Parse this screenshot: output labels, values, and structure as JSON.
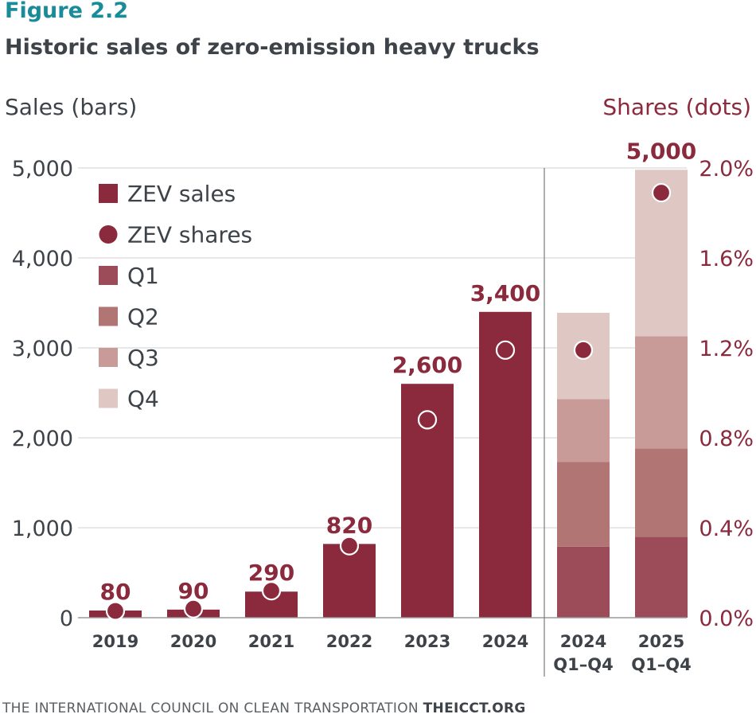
{
  "figure_label": "Figure 2.2",
  "title": "Historic sales of zero-emission heavy trucks",
  "footer_org": "THE INTERNATIONAL COUNCIL ON CLEAN TRANSPORTATION",
  "footer_site": "THEICCT.ORG",
  "colors": {
    "zev": "#8b2a3d",
    "q1": "#9c4b58",
    "q2": "#b17574",
    "q3": "#c99b98",
    "q4": "#dfc7c4",
    "grid": "#d0d0d0",
    "axis_text": "#3d4348",
    "share_text": "#8b2a3d"
  },
  "chart_data": {
    "type": "bar",
    "left_axis_title": "Sales (bars)",
    "right_axis_title": "Shares (dots)",
    "ylim": [
      0,
      5000
    ],
    "y_ticks": [
      0,
      1000,
      2000,
      3000,
      4000,
      5000
    ],
    "y_tick_labels": [
      "0",
      "1,000",
      "2,000",
      "3,000",
      "4,000",
      "5,000"
    ],
    "y2lim": [
      0,
      2.0
    ],
    "y2_ticks": [
      0,
      0.4,
      0.8,
      1.2,
      1.6,
      2.0
    ],
    "y2_tick_labels": [
      "0.0%",
      "0.4%",
      "0.8%",
      "1.2%",
      "1.6%",
      "2.0%"
    ],
    "legend": [
      {
        "label": "ZEV sales",
        "marker": "square",
        "color_key": "zev"
      },
      {
        "label": "ZEV shares",
        "marker": "circle",
        "color_key": "zev"
      },
      {
        "label": "Q1",
        "marker": "square",
        "color_key": "q1"
      },
      {
        "label": "Q2",
        "marker": "square",
        "color_key": "q2"
      },
      {
        "label": "Q3",
        "marker": "square",
        "color_key": "q3"
      },
      {
        "label": "Q4",
        "marker": "square",
        "color_key": "q4"
      }
    ],
    "annual": [
      {
        "year": "2019",
        "sales": 80,
        "label": "80",
        "share": 0.03
      },
      {
        "year": "2020",
        "sales": 90,
        "label": "90",
        "share": 0.04
      },
      {
        "year": "2021",
        "sales": 290,
        "label": "290",
        "share": 0.12
      },
      {
        "year": "2022",
        "sales": 820,
        "label": "820",
        "share": 0.32
      },
      {
        "year": "2023",
        "sales": 2600,
        "label": "2,600",
        "share": 0.88
      },
      {
        "year": "2024",
        "sales": 3400,
        "label": "3,400",
        "share": 1.19
      }
    ],
    "quarterly": [
      {
        "line1": "2024",
        "line2": "Q1–Q4",
        "quarters": [
          790,
          940,
          700,
          960
        ],
        "share": 1.19,
        "label": ""
      },
      {
        "line1": "2025",
        "line2": "Q1–Q4",
        "quarters": [
          900,
          980,
          1250,
          1850
        ],
        "share": 1.89,
        "label": "5,000"
      }
    ]
  }
}
